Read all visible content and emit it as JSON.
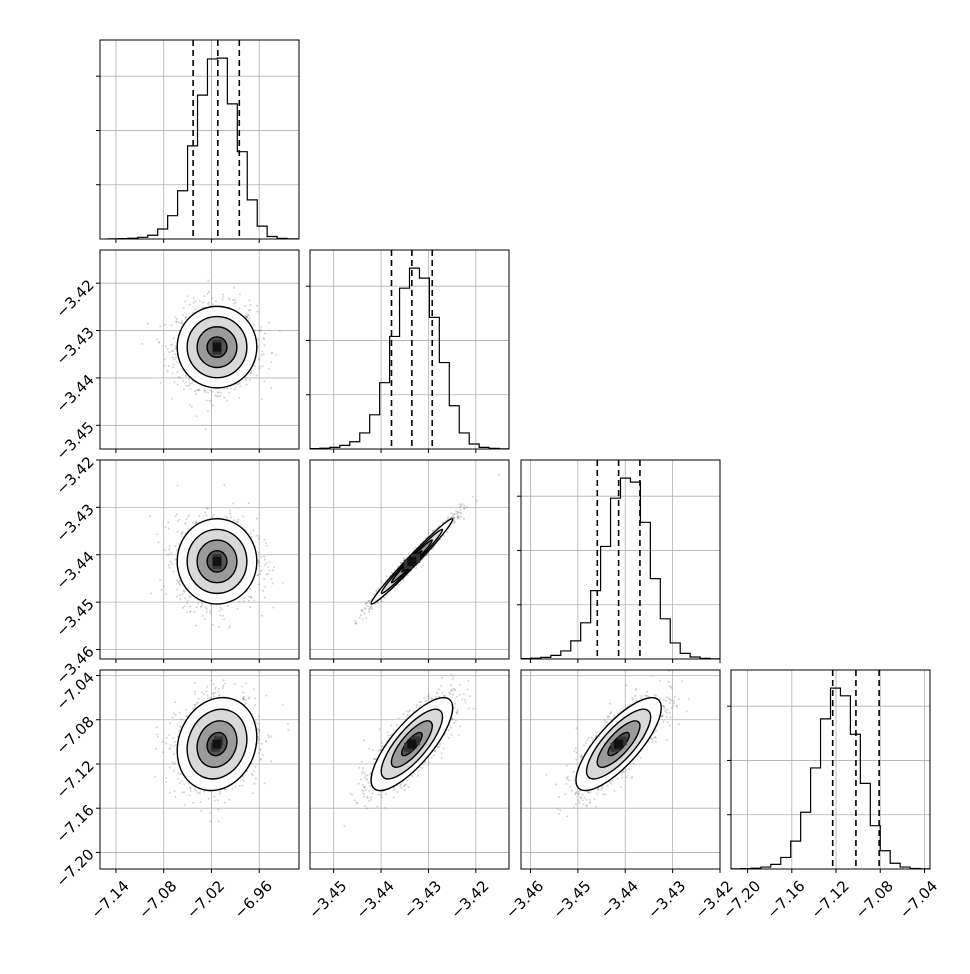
{
  "chart_data": {
    "type": "corner",
    "parameters": 4,
    "tick_labels": {
      "p0": [
        "−7.14",
        "−7.08",
        "−7.02",
        "−6.96"
      ],
      "p1": [
        "−3.45",
        "−3.44",
        "−3.43",
        "−3.42"
      ],
      "p2": [
        "−3.46",
        "−3.45",
        "−3.44",
        "−3.43",
        "−3.42"
      ],
      "p3": [
        "−7.20",
        "−7.16",
        "−7.12",
        "−7.08",
        "−7.04"
      ]
    },
    "ranges": {
      "p0": [
        -7.16,
        -6.91
      ],
      "p1": [
        -3.455,
        -3.413
      ],
      "p2": [
        -3.462,
        -3.42
      ],
      "p3": [
        -7.215,
        -7.035
      ]
    },
    "ticks": {
      "p0": [
        -7.14,
        -7.08,
        -7.02,
        -6.96
      ],
      "p1": [
        -3.45,
        -3.44,
        -3.43,
        -3.42
      ],
      "p2": [
        -3.46,
        -3.45,
        -3.44,
        -3.43,
        -3.42
      ],
      "p3": [
        -7.2,
        -7.16,
        -7.12,
        -7.08,
        -7.04
      ]
    },
    "quantiles": {
      "p0": [
        -7.043,
        -7.012,
        -6.985
      ],
      "p1": [
        -3.4378,
        -3.4335,
        -3.4292
      ],
      "p2": [
        -3.4459,
        -3.4414,
        -3.4369
      ],
      "p3": [
        -7.123,
        -7.102,
        -7.081
      ]
    },
    "histograms": [
      {
        "param": "p0",
        "bin_start": -7.15,
        "bin_width": 0.0125,
        "counts": [
          1,
          2,
          4,
          8,
          18,
          48,
          112,
          232,
          448,
          692,
          866,
          870,
          650,
          420,
          188,
          62,
          12,
          3,
          1,
          0
        ]
      },
      {
        "param": "p1",
        "bin_start": -3.455,
        "bin_width": 0.0021,
        "counts": [
          2,
          4,
          8,
          18,
          36,
          80,
          170,
          330,
          560,
          800,
          900,
          850,
          655,
          430,
          215,
          80,
          25,
          8,
          3,
          1
        ]
      },
      {
        "param": "p2",
        "bin_start": -3.462,
        "bin_width": 0.0021,
        "counts": [
          2,
          4,
          8,
          18,
          40,
          90,
          180,
          340,
          560,
          800,
          900,
          880,
          680,
          400,
          200,
          80,
          28,
          10,
          3,
          1
        ]
      },
      {
        "param": "p3",
        "bin_start": -7.215,
        "bin_width": 0.009,
        "counts": [
          1,
          2,
          4,
          10,
          24,
          60,
          145,
          295,
          525,
          780,
          940,
          900,
          700,
          445,
          225,
          95,
          30,
          10,
          3,
          1
        ]
      }
    ],
    "pairs": [
      {
        "x": "p0",
        "y": "p1",
        "mean": [
          -7.013,
          -3.4335
        ],
        "sd": [
          0.025,
          0.0043
        ],
        "corr": 0.0
      },
      {
        "x": "p0",
        "y": "p2",
        "mean": [
          -7.013,
          -3.4414
        ],
        "sd": [
          0.025,
          0.0045
        ],
        "corr": 0.0
      },
      {
        "x": "p1",
        "y": "p2",
        "mean": [
          -3.4335,
          -3.4414
        ],
        "sd": [
          0.0043,
          0.0045
        ],
        "corr": 0.985
      },
      {
        "x": "p0",
        "y": "p3",
        "mean": [
          -7.013,
          -7.102
        ],
        "sd": [
          0.025,
          0.021
        ],
        "corr": 0.15
      },
      {
        "x": "p1",
        "y": "p3",
        "mean": [
          -3.4335,
          -7.102
        ],
        "sd": [
          0.0043,
          0.021
        ],
        "corr": 0.78
      },
      {
        "x": "p2",
        "y": "p3",
        "mean": [
          -3.4414,
          -7.102
        ],
        "sd": [
          0.0045,
          0.021
        ],
        "corr": 0.78
      }
    ],
    "contour_levels_sigma": [
      0.5,
      1.0,
      1.5,
      2.0
    ],
    "grid": true,
    "colors": {
      "line": "#000000",
      "grid": "#b0b0b0",
      "scatter": "#808080"
    }
  }
}
